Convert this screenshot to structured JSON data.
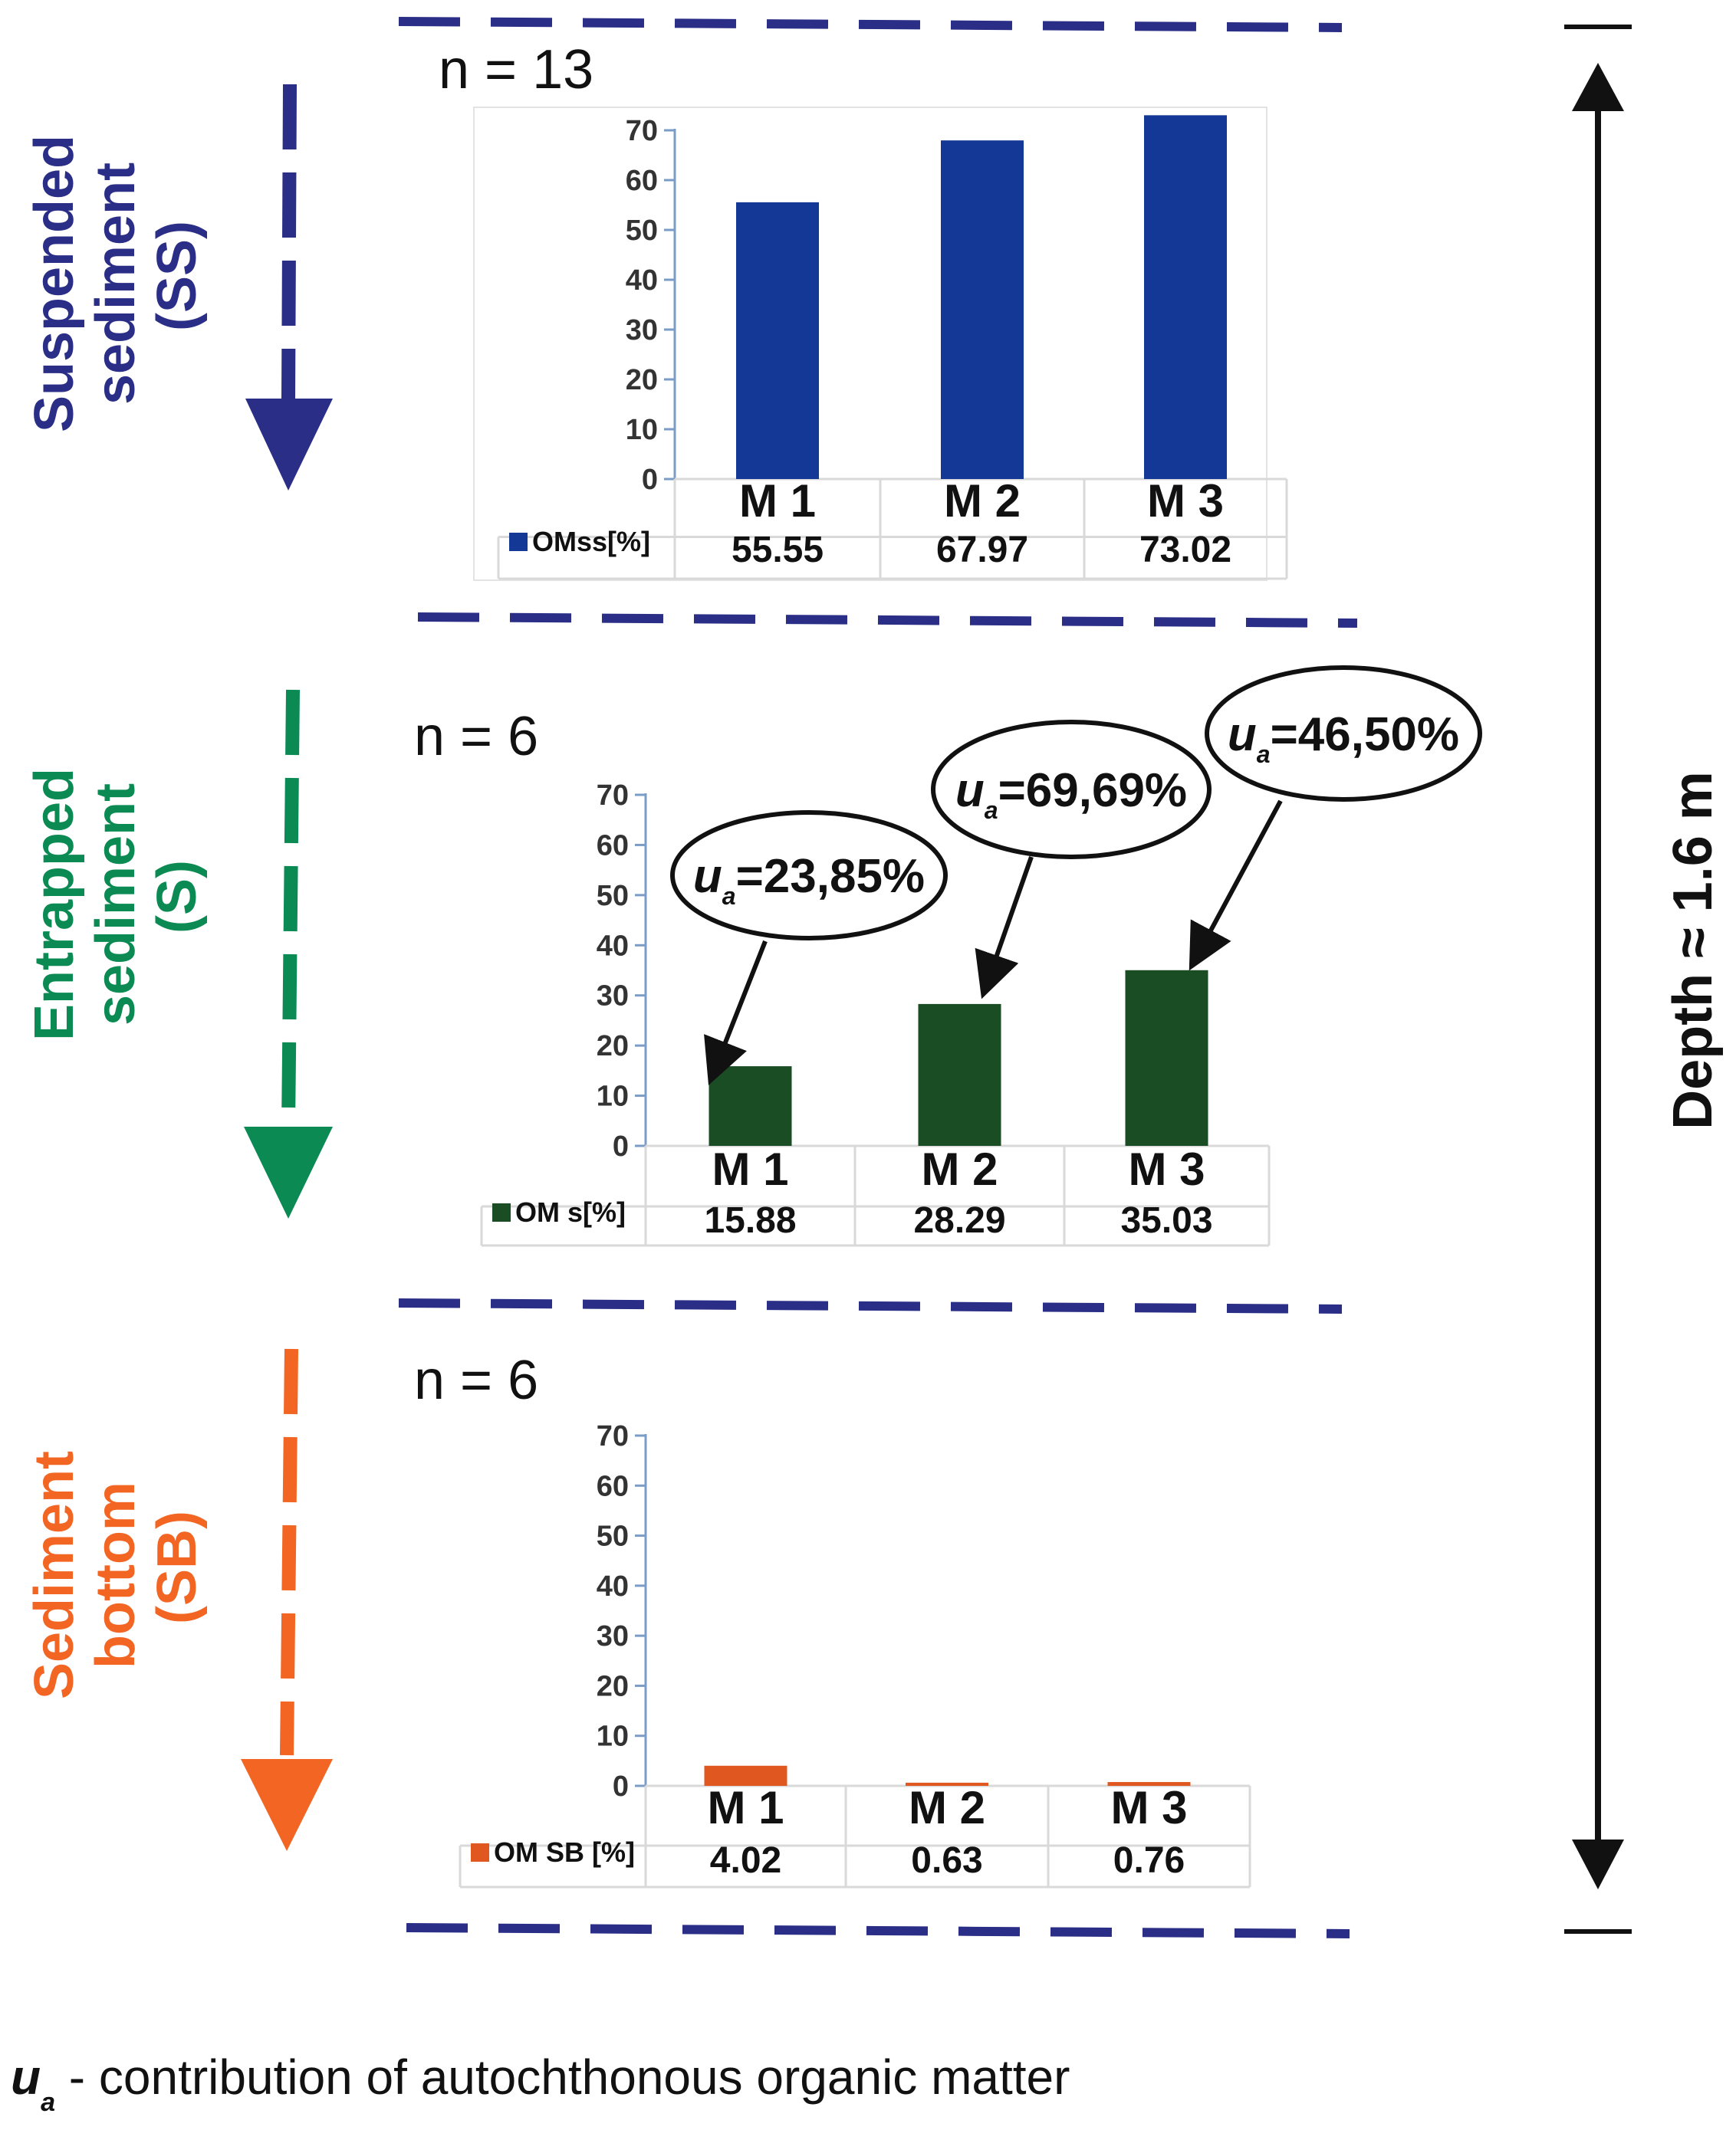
{
  "sections": [
    {
      "label_lines": [
        "Suspended",
        "sediment",
        "(SS)"
      ],
      "color": "#2b2e86"
    },
    {
      "label_lines": [
        "Entrapped",
        "sediment",
        "(S)"
      ],
      "color": "#0b8a53"
    },
    {
      "label_lines": [
        "Sediment",
        "bottom",
        "(SB)"
      ],
      "color": "#f26522"
    }
  ],
  "depth_label": "Depth ≈ 1.6 m",
  "footnote": {
    "symbol": "u",
    "sub": "a",
    "text": " - contribution of autochthonous organic matter"
  },
  "chart_data": [
    {
      "type": "bar",
      "n_label": "n = 13",
      "categories": [
        "M 1",
        "M 2",
        "M 3"
      ],
      "series": [
        {
          "name": "OMss[%]",
          "values": [
            55.55,
            67.97,
            73.02
          ],
          "value_labels": [
            "55.55",
            "67.97",
            "73.02"
          ]
        }
      ],
      "color": "#143896",
      "ylim": [
        0,
        70
      ],
      "yticks": [
        0,
        10,
        20,
        30,
        40,
        50,
        60,
        70
      ],
      "annotations": []
    },
    {
      "type": "bar",
      "n_label": "n = 6",
      "categories": [
        "M 1",
        "M 2",
        "M 3"
      ],
      "series": [
        {
          "name": "OM s[%]",
          "values": [
            15.88,
            28.29,
            35.03
          ],
          "value_labels": [
            "15.88",
            "28.29",
            "35.03"
          ]
        }
      ],
      "color": "#1a4d24",
      "ylim": [
        0,
        70
      ],
      "yticks": [
        0,
        10,
        20,
        30,
        40,
        50,
        60,
        70
      ],
      "annotations": [
        {
          "category": "M 1",
          "symbol": "u",
          "sub": "a",
          "text": "=23,85%"
        },
        {
          "category": "M 2",
          "symbol": "u",
          "sub": "a",
          "text": "=69,69%"
        },
        {
          "category": "M 3",
          "symbol": "u",
          "sub": "a",
          "text": "=46,50%"
        }
      ]
    },
    {
      "type": "bar",
      "n_label": "n = 6",
      "categories": [
        "M 1",
        "M 2",
        "M 3"
      ],
      "series": [
        {
          "name": "OM SB [%]",
          "values": [
            4.02,
            0.63,
            0.76
          ],
          "value_labels": [
            "4.02",
            "0.63",
            "0.76"
          ]
        }
      ],
      "color": "#e0571f",
      "ylim": [
        0,
        70
      ],
      "yticks": [
        0,
        10,
        20,
        30,
        40,
        50,
        60,
        70
      ],
      "annotations": []
    }
  ]
}
